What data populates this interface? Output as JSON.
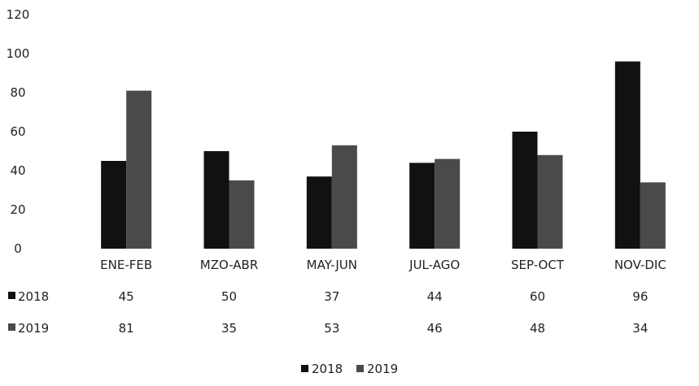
{
  "chart_data": {
    "type": "bar",
    "title": "",
    "xlabel": "",
    "ylabel": "",
    "categories": [
      "ENE-FEB",
      "MZO-ABR",
      "MAY-JUN",
      "JUL-AGO",
      "SEP-OCT",
      "NOV-DIC"
    ],
    "series": [
      {
        "name": "2018",
        "values": [
          45,
          50,
          37,
          44,
          60,
          96
        ],
        "color": "#111111"
      },
      {
        "name": "2019",
        "values": [
          81,
          35,
          53,
          46,
          48,
          34
        ],
        "color": "#4a4a4a"
      }
    ],
    "ylim": [
      0,
      120
    ],
    "y_ticks": [
      0,
      20,
      40,
      60,
      80,
      100,
      120
    ],
    "grid": false,
    "legend_position": "bottom",
    "data_table": true
  }
}
